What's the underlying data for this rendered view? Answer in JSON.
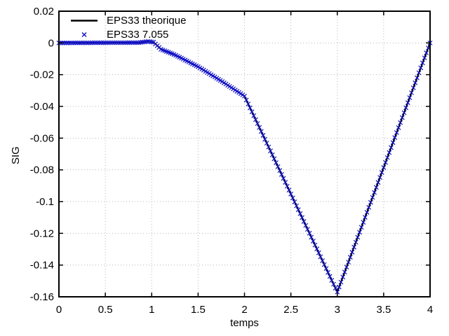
{
  "figure": {
    "background": "#ffffff",
    "xlabel": "temps",
    "ylabel": "SIG"
  },
  "legend": {
    "position": "top-left-inside",
    "entries": [
      {
        "label": "EPS33 theorique",
        "swatch": "line",
        "color": "#000000"
      },
      {
        "label": "EPS33 7.055",
        "swatch": "x-marker",
        "color": "#0f0fc8"
      }
    ]
  },
  "chart_data": {
    "type": "line",
    "title": "",
    "xlabel": "temps",
    "ylabel": "SIG",
    "xlim": [
      0,
      4
    ],
    "ylim": [
      -0.16,
      0.02
    ],
    "grid": true,
    "grid_color": "#b8b8b8",
    "border_color": "#000000",
    "xticks": [
      {
        "v": 0,
        "label": "0"
      },
      {
        "v": 0.5,
        "label": "0.5"
      },
      {
        "v": 1,
        "label": "1"
      },
      {
        "v": 1.5,
        "label": "1.5"
      },
      {
        "v": 2,
        "label": "2"
      },
      {
        "v": 2.5,
        "label": "2.5"
      },
      {
        "v": 3,
        "label": "3"
      },
      {
        "v": 3.5,
        "label": "3.5"
      },
      {
        "v": 4,
        "label": "4"
      }
    ],
    "yticks": [
      {
        "v": 0.02,
        "label": "0.02"
      },
      {
        "v": 0,
        "label": "0"
      },
      {
        "v": -0.02,
        "label": "-0.02"
      },
      {
        "v": -0.04,
        "label": "-0.04"
      },
      {
        "v": -0.06,
        "label": "-0.06"
      },
      {
        "v": -0.08,
        "label": "-0.08"
      },
      {
        "v": -0.1,
        "label": "-0.1"
      },
      {
        "v": -0.12,
        "label": "-0.12"
      },
      {
        "v": -0.14,
        "label": "-0.14"
      },
      {
        "v": -0.16,
        "label": "-0.16"
      }
    ],
    "series": [
      {
        "name": "EPS33 theorique",
        "style": "line",
        "color": "#000000",
        "line_width": 2,
        "points": [
          [
            0,
            0
          ],
          [
            0.86,
            0.0002
          ],
          [
            0.96,
            0.0009
          ],
          [
            1.02,
            0.0005
          ],
          [
            1.1,
            -0.004
          ],
          [
            1.25,
            -0.0075
          ],
          [
            1.5,
            -0.015
          ],
          [
            1.75,
            -0.024
          ],
          [
            2.0,
            -0.0335
          ],
          [
            3.0,
            -0.157
          ],
          [
            4.0,
            0
          ]
        ]
      },
      {
        "name": "EPS33 7.055",
        "style": "x-markers",
        "color": "#0f0fc8",
        "marker_half_size": 3,
        "derived_from_series": 0,
        "sample_step": 0.02,
        "sample_range": [
          0,
          4
        ]
      }
    ]
  }
}
